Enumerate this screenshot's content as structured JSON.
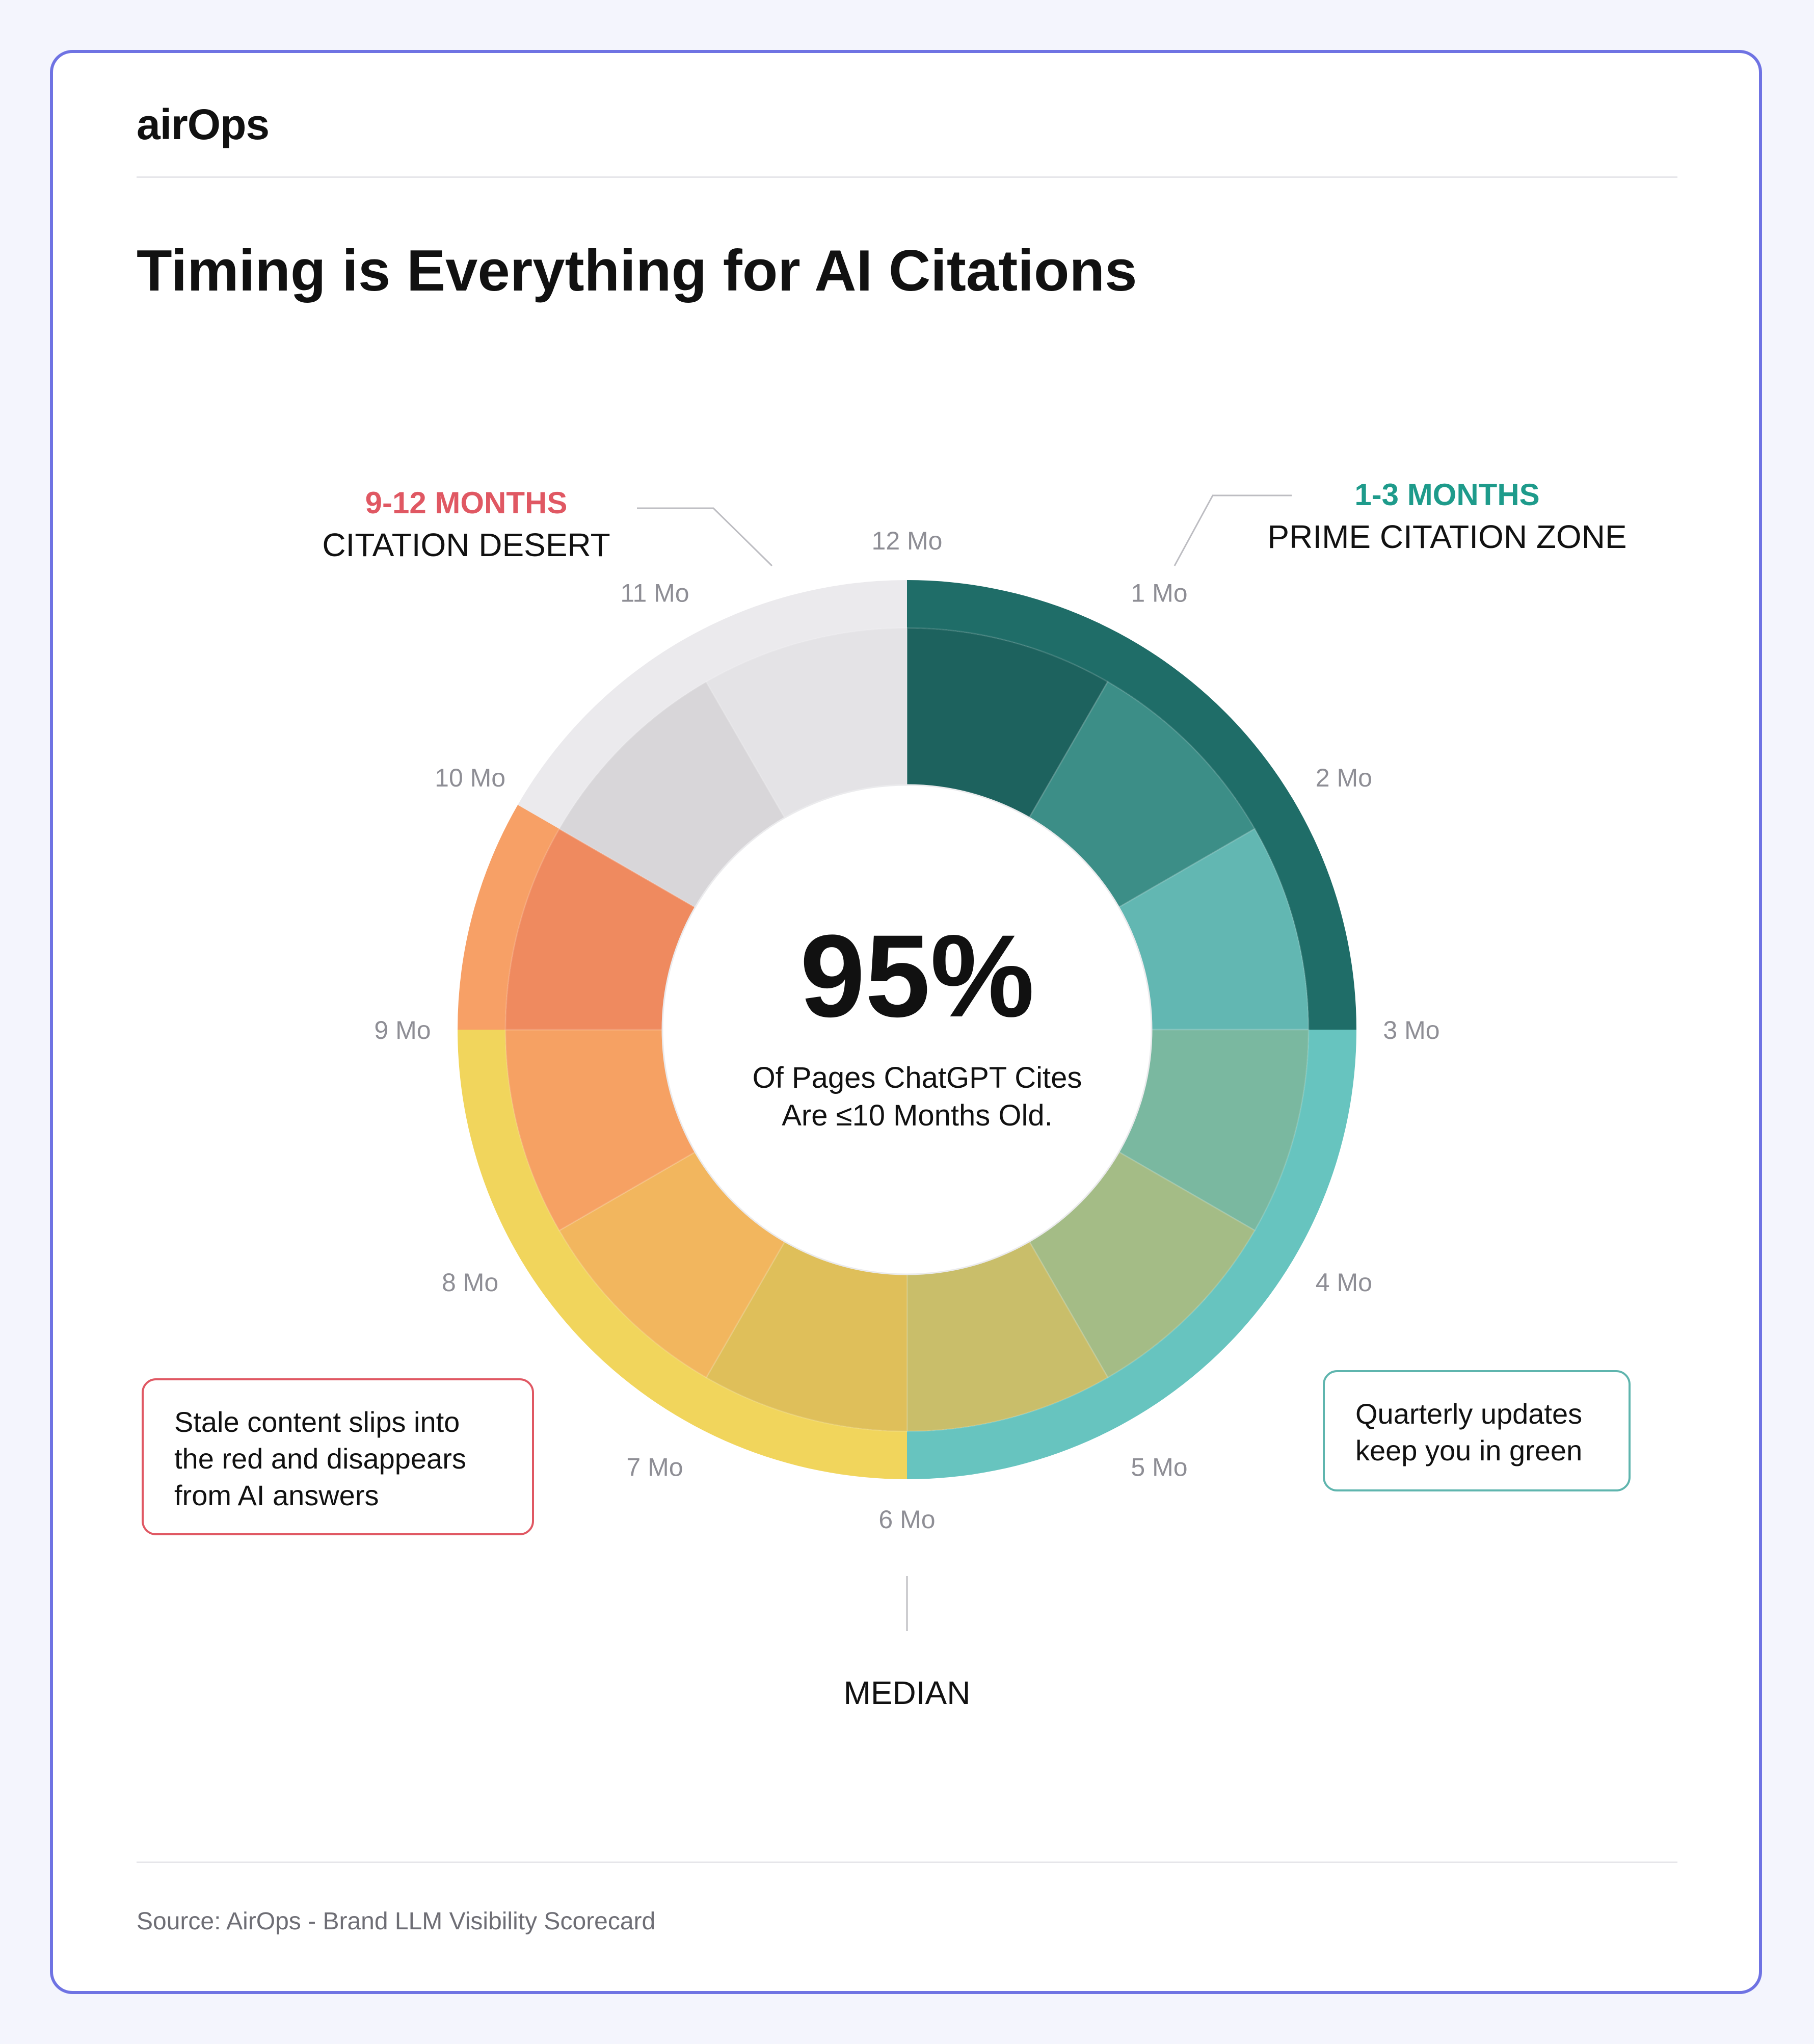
{
  "brand": {
    "logo_text": "airOps"
  },
  "title": "Timing is Everything for AI Citations",
  "annotations": {
    "desert_heading": "9-12 MONTHS",
    "desert_label": "CITATION DESERT",
    "prime_heading": "1-3 MONTHS",
    "prime_label": "PRIME CITATION ZONE",
    "median_label": "MEDIAN",
    "stale_note": "Stale content slips into the red and disappears from AI answers",
    "quarterly_note": "Quarterly updates keep you in green"
  },
  "center": {
    "big_stat": "95%",
    "line1": "Of Pages ChatGPT Cites",
    "line2": "Are ≤10 Months Old."
  },
  "source": "Source: AirOps - Brand LLM Visibility Scorecard",
  "colors": {
    "desert_red": "#e05863",
    "prime_teal": "#1e9b8b",
    "card_border": "#6f73e3",
    "dark_teal": "#1d6b66",
    "mid_teal": "#5fb8b4",
    "light_teal": "#80d5d0",
    "yellow": "#f6d860",
    "orange": "#f7a567",
    "grey": "#e6e5e8"
  },
  "chart_data": {
    "type": "radial",
    "tick_labels": [
      "12 Mo",
      "1 Mo",
      "2 Mo",
      "3 Mo",
      "4 Mo",
      "5 Mo",
      "6 Mo",
      "7 Mo",
      "8 Mo",
      "9 Mo",
      "10 Mo",
      "11 Mo"
    ],
    "outer_ring": [
      {
        "from_month": 0,
        "to_month": 3,
        "color": "#1f6d68"
      },
      {
        "from_month": 3,
        "to_month": 6,
        "color": "#67c4bf"
      },
      {
        "from_month": 6,
        "to_month": 9,
        "color": "#f1d55c"
      },
      {
        "from_month": 9,
        "to_month": 10,
        "color": "#f7a066"
      },
      {
        "from_month": 10,
        "to_month": 12,
        "color": "#ebeaed"
      }
    ],
    "inner_ring": {
      "months": [
        1,
        2,
        3,
        4,
        5,
        6,
        7,
        8,
        9,
        10,
        11,
        12
      ],
      "colors": [
        "#1d625e",
        "#3c8e87",
        "#62b7b2",
        "#7ab8a0",
        "#a4bc86",
        "#c9be6a",
        "#dfbf5a",
        "#f2b65e",
        "#f6a163",
        "#ef8a5f",
        "#d8d6d9",
        "#e4e3e6"
      ]
    },
    "median_month": 6,
    "center_value_percent": 95
  }
}
